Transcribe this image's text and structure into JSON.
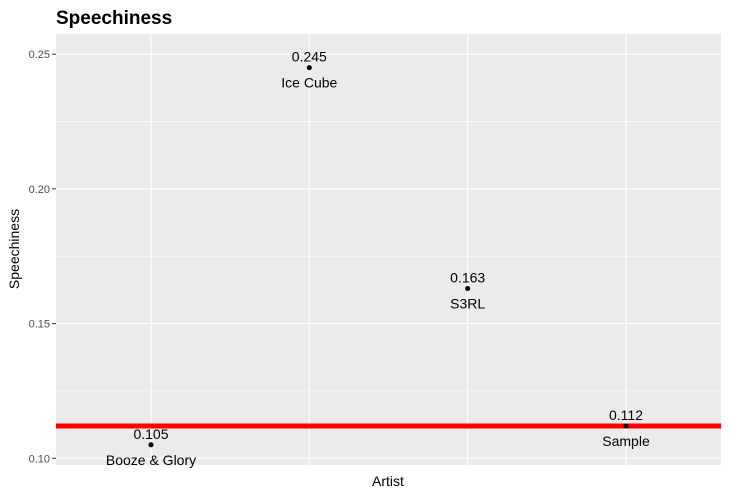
{
  "chart_data": {
    "type": "scatter",
    "title": "Speechiness",
    "xlabel": "Artist",
    "ylabel": "Speechiness",
    "ylim": [
      0.0975,
      0.2575
    ],
    "yticks": [
      0.1,
      0.15,
      0.2,
      0.25
    ],
    "ytick_labels": [
      "0.10",
      "0.15",
      "0.20",
      "0.25"
    ],
    "grid": true,
    "background": "#ebebeb",
    "gridline_color": "#ffffff",
    "point_color": "#000000",
    "points": [
      {
        "artist": "Booze & Glory",
        "x": 1,
        "y": 0.105,
        "value_label": "0.105"
      },
      {
        "artist": "Ice Cube",
        "x": 2,
        "y": 0.245,
        "value_label": "0.245"
      },
      {
        "artist": "S3RL",
        "x": 3,
        "y": 0.163,
        "value_label": "0.163"
      },
      {
        "artist": "Sample",
        "x": 4,
        "y": 0.112,
        "value_label": "0.112"
      }
    ],
    "reference_line": {
      "y": 0.112,
      "color": "#ff0000"
    }
  }
}
